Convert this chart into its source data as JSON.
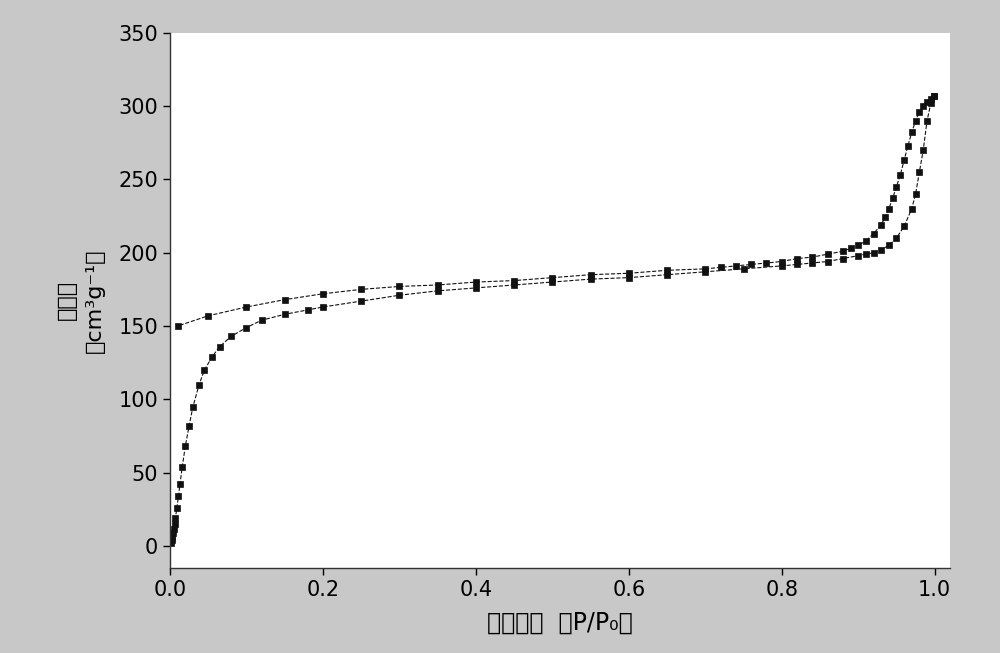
{
  "adsorption_x": [
    0.001,
    0.002,
    0.003,
    0.004,
    0.005,
    0.006,
    0.007,
    0.009,
    0.011,
    0.013,
    0.016,
    0.02,
    0.025,
    0.03,
    0.038,
    0.045,
    0.055,
    0.065,
    0.08,
    0.1,
    0.12,
    0.15,
    0.18,
    0.2,
    0.25,
    0.3,
    0.35,
    0.4,
    0.45,
    0.5,
    0.55,
    0.6,
    0.65,
    0.7,
    0.75,
    0.8,
    0.82,
    0.84,
    0.86,
    0.88,
    0.9,
    0.91,
    0.92,
    0.93,
    0.94,
    0.95,
    0.96,
    0.97,
    0.975,
    0.98,
    0.985,
    0.99,
    0.995,
    0.999
  ],
  "adsorption_y": [
    2,
    4,
    6,
    9,
    12,
    15,
    19,
    26,
    34,
    42,
    54,
    68,
    82,
    95,
    110,
    120,
    129,
    136,
    143,
    149,
    154,
    158,
    161,
    163,
    167,
    171,
    174,
    176,
    178,
    180,
    182,
    183,
    185,
    187,
    189,
    191,
    192,
    193,
    194,
    196,
    198,
    199,
    200,
    202,
    205,
    210,
    218,
    230,
    240,
    255,
    270,
    290,
    302,
    307
  ],
  "desorption_x": [
    0.999,
    0.995,
    0.99,
    0.985,
    0.98,
    0.975,
    0.97,
    0.965,
    0.96,
    0.955,
    0.95,
    0.945,
    0.94,
    0.935,
    0.93,
    0.92,
    0.91,
    0.9,
    0.89,
    0.88,
    0.86,
    0.84,
    0.82,
    0.8,
    0.78,
    0.76,
    0.74,
    0.72,
    0.7,
    0.65,
    0.6,
    0.55,
    0.5,
    0.45,
    0.4,
    0.35,
    0.3,
    0.25,
    0.2,
    0.15,
    0.1,
    0.05,
    0.01
  ],
  "desorption_y": [
    307,
    305,
    303,
    300,
    296,
    290,
    282,
    273,
    263,
    253,
    245,
    237,
    230,
    224,
    219,
    213,
    208,
    205,
    203,
    201,
    199,
    197,
    196,
    194,
    193,
    192,
    191,
    190,
    189,
    188,
    186,
    185,
    183,
    181,
    180,
    178,
    177,
    175,
    172,
    168,
    163,
    157,
    150
  ],
  "xlabel": "相对压力  （P/P₀）",
  "ylabel_line1": "吸附量",
  "ylabel_line2": "（cm³g⁻¹）",
  "xlim": [
    0.0,
    1.02
  ],
  "ylim": [
    -15,
    350
  ],
  "xticks": [
    0.0,
    0.2,
    0.4,
    0.6,
    0.8,
    1.0
  ],
  "yticks": [
    0,
    50,
    100,
    150,
    200,
    250,
    300,
    350
  ],
  "marker": "s",
  "markersize": 5,
  "linewidth": 0.8,
  "linestyle": "--",
  "color": "#111111",
  "xlabel_fontsize": 17,
  "ylabel_fontsize": 16,
  "tick_fontsize": 15,
  "fig_bgcolor": "#c8c8c8",
  "plot_bgcolor": "#ffffff"
}
